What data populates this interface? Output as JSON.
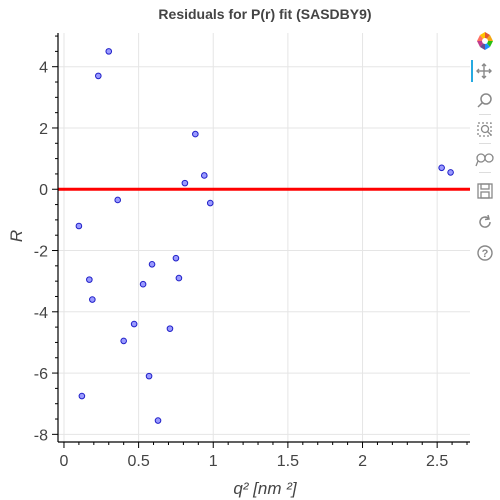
{
  "chart_data": {
    "type": "scatter",
    "title": "Residuals for P(r) fit (SASDBY9)",
    "xlabel": "q² [nm ²]",
    "ylabel": "R",
    "xlim": [
      -0.04,
      2.72
    ],
    "ylim": [
      -8.25,
      5.1
    ],
    "xticks": [
      0,
      0.5,
      1,
      1.5,
      2,
      2.5
    ],
    "xtick_labels": [
      "0",
      "0.5",
      "1",
      "1.5",
      "2",
      "2.5"
    ],
    "yticks": [
      -8,
      -6,
      -4,
      -2,
      0,
      2,
      4
    ],
    "ytick_labels": [
      "-8",
      "-6",
      "-4",
      "-2",
      "0",
      "2",
      "4"
    ],
    "grid": true,
    "reference_line": {
      "y": 0,
      "color": "#ff0000"
    },
    "point_fill": "#9a9aff",
    "point_stroke": "#2020c8",
    "points": [
      {
        "x": 0.1,
        "y": -1.2
      },
      {
        "x": 0.12,
        "y": -6.75
      },
      {
        "x": 0.17,
        "y": -2.95
      },
      {
        "x": 0.19,
        "y": -3.6
      },
      {
        "x": 0.23,
        "y": 3.7
      },
      {
        "x": 0.3,
        "y": 4.5
      },
      {
        "x": 0.36,
        "y": -0.35
      },
      {
        "x": 0.4,
        "y": -4.95
      },
      {
        "x": 0.47,
        "y": -4.4
      },
      {
        "x": 0.53,
        "y": -3.1
      },
      {
        "x": 0.57,
        "y": -6.1
      },
      {
        "x": 0.59,
        "y": -2.45
      },
      {
        "x": 0.63,
        "y": -7.55
      },
      {
        "x": 0.71,
        "y": -4.55
      },
      {
        "x": 0.75,
        "y": -2.25
      },
      {
        "x": 0.77,
        "y": -2.9
      },
      {
        "x": 0.81,
        "y": 0.2
      },
      {
        "x": 0.88,
        "y": 1.8
      },
      {
        "x": 0.94,
        "y": 0.45
      },
      {
        "x": 0.98,
        "y": -0.45
      },
      {
        "x": 2.53,
        "y": 0.7
      },
      {
        "x": 2.59,
        "y": 0.55
      }
    ]
  },
  "toolbar": {
    "tools": [
      {
        "name": "bokeh-logo-icon"
      },
      {
        "name": "pan-tool-icon"
      },
      {
        "name": "zoom-tool-icon"
      },
      {
        "name": "box-zoom-tool-icon"
      },
      {
        "name": "wheel-zoom-tool-icon"
      },
      {
        "name": "save-tool-icon"
      },
      {
        "name": "reset-tool-icon"
      },
      {
        "name": "help-tool-icon"
      }
    ],
    "active_tool": "pan-tool-icon",
    "accent_color": "#26aae1"
  }
}
